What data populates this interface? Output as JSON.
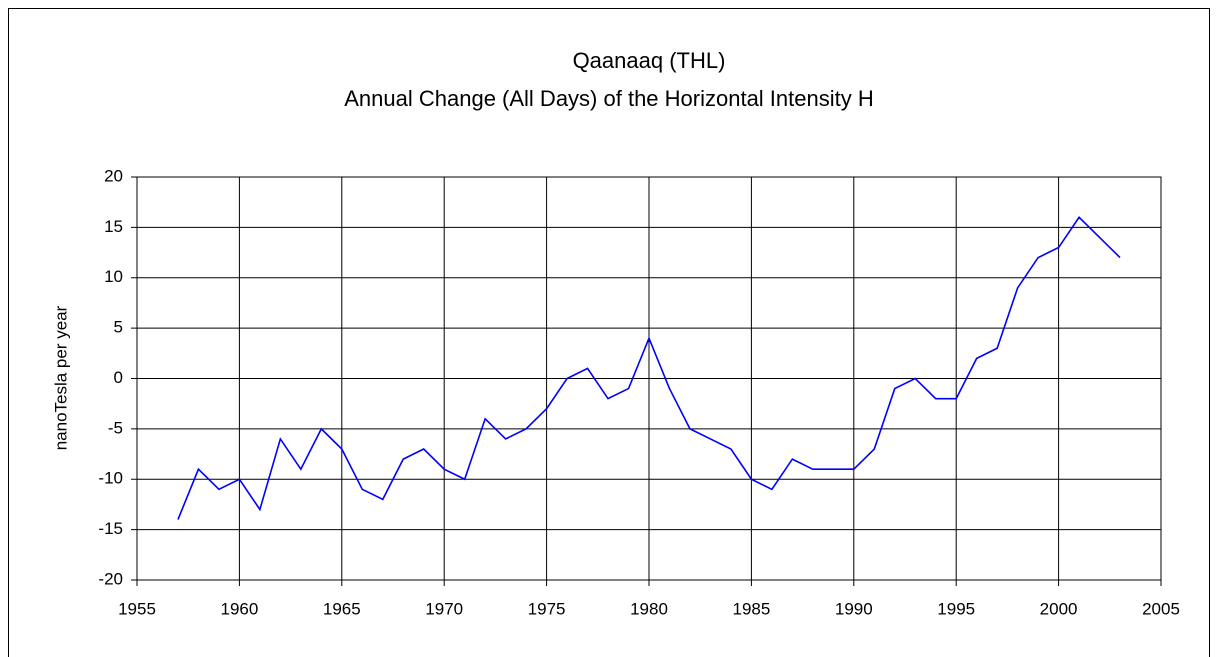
{
  "chart_data": {
    "type": "line",
    "title": "Qaanaaq (THL)",
    "subtitle": "Annual Change (All Days) of the Horizontal Intensity H",
    "y_label": "nanoTesla per year",
    "x": [
      1957,
      1958,
      1959,
      1960,
      1961,
      1962,
      1963,
      1964,
      1965,
      1966,
      1967,
      1968,
      1969,
      1970,
      1971,
      1972,
      1973,
      1974,
      1975,
      1976,
      1977,
      1978,
      1979,
      1980,
      1981,
      1982,
      1983,
      1984,
      1985,
      1986,
      1987,
      1988,
      1989,
      1990,
      1991,
      1992,
      1993,
      1994,
      1995,
      1996,
      1997,
      1998,
      1999,
      2000,
      2001,
      2002,
      2003
    ],
    "series": [
      {
        "color": "#0000ff",
        "values": [
          -14,
          -9,
          -11,
          -10,
          -13,
          -6,
          -9,
          -5,
          -7,
          -11,
          -12,
          -8,
          -7,
          -9,
          -10,
          -4,
          -6,
          -5,
          -3,
          0,
          1,
          -2,
          -1,
          4,
          -1,
          -5,
          -6,
          -7,
          -10,
          -11,
          -8,
          -9,
          -9,
          -9,
          -7,
          -1,
          0,
          -2,
          -2,
          2,
          3,
          9,
          12,
          13,
          16,
          14,
          12
        ]
      }
    ],
    "xlim": [
      1955,
      2005
    ],
    "xticks": [
      1955,
      1960,
      1965,
      1970,
      1975,
      1980,
      1985,
      1990,
      1995,
      2000,
      2005
    ],
    "ylim": [
      -20,
      20
    ],
    "yticks": [
      -20,
      -15,
      -10,
      -5,
      0,
      5,
      10,
      15,
      20
    ],
    "grid": true
  }
}
